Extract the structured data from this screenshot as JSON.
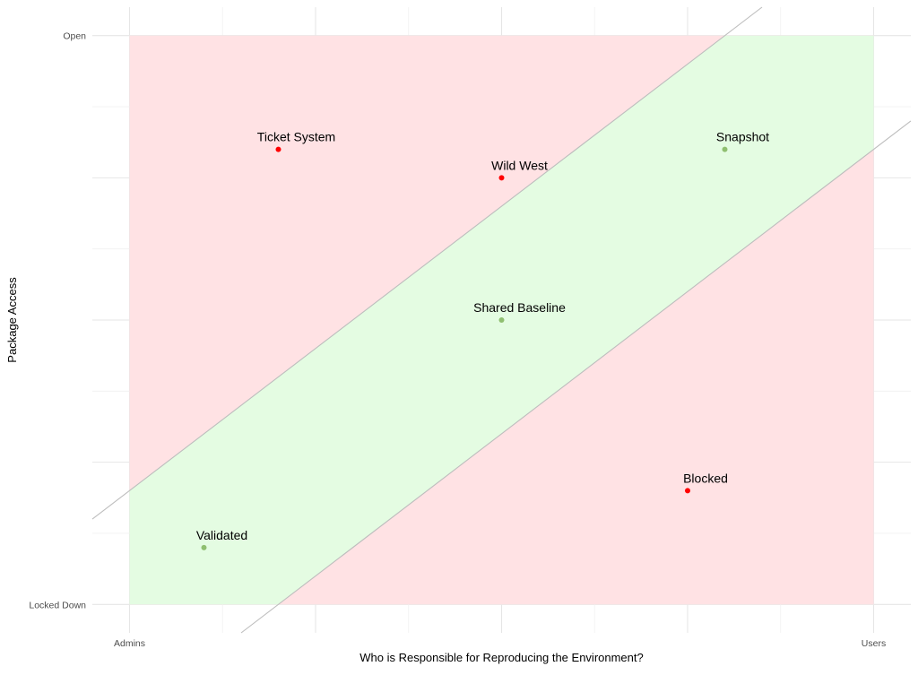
{
  "chart_data": {
    "type": "scatter",
    "xlabel": "Who is Responsible for Reproducing the Environment?",
    "ylabel": "Package Access",
    "x_ticks": [
      {
        "value": 0,
        "label": "Admins"
      },
      {
        "value": 1,
        "label": "Users"
      }
    ],
    "y_ticks": [
      {
        "value": 0,
        "label": "Locked Down"
      },
      {
        "value": 1,
        "label": "Open"
      }
    ],
    "xlim": [
      -0.05,
      1.05
    ],
    "ylim": [
      -0.05,
      1.05
    ],
    "grid": true,
    "points": [
      {
        "label": "Ticket System",
        "x": 0.2,
        "y": 0.8,
        "status": "bad"
      },
      {
        "label": "Wild West",
        "x": 0.5,
        "y": 0.75,
        "status": "bad"
      },
      {
        "label": "Snapshot",
        "x": 0.8,
        "y": 0.8,
        "status": "good"
      },
      {
        "label": "Shared Baseline",
        "x": 0.5,
        "y": 0.5,
        "status": "good"
      },
      {
        "label": "Blocked",
        "x": 0.75,
        "y": 0.2,
        "status": "bad"
      },
      {
        "label": "Validated",
        "x": 0.1,
        "y": 0.1,
        "status": "good"
      }
    ],
    "regions": {
      "bad_fill": "#ffe2e4",
      "good_fill": "#e4fce2",
      "band_upper": {
        "intercept": 0.2,
        "slope": 1.0
      },
      "band_lower": {
        "intercept": -0.2,
        "slope": 1.0
      }
    },
    "colors": {
      "bad": "#ff0000",
      "good": "#8fbf70",
      "band_line": "#bdbdbd"
    }
  }
}
